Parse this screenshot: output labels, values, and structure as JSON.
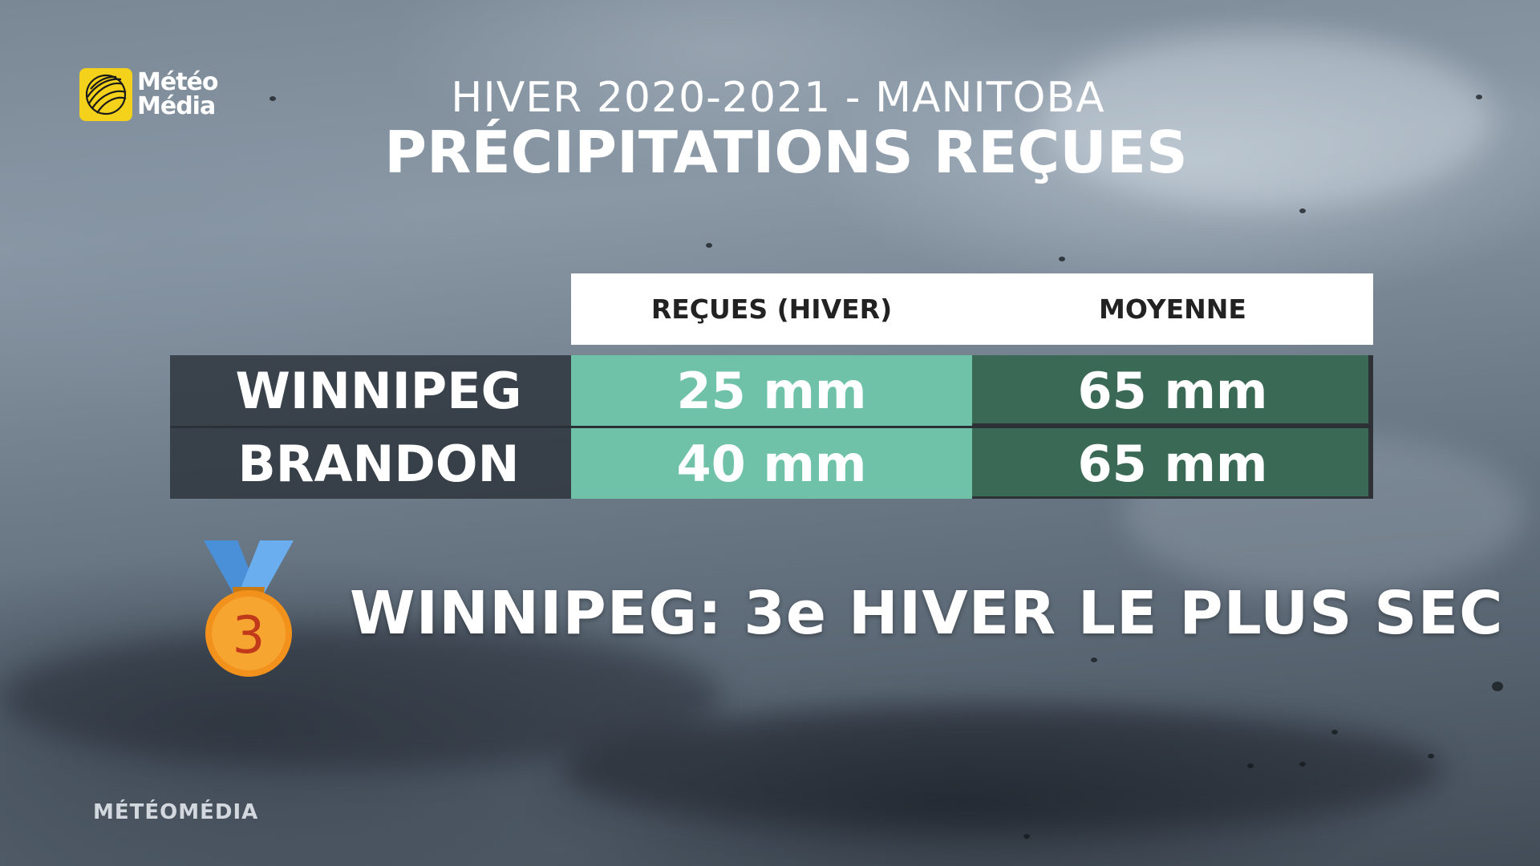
{
  "logo": {
    "line1": "Météo",
    "line2": "Média"
  },
  "header": {
    "subtitle": "HIVER 2020-2021 - MANITOBA",
    "title": "PRÉCIPITATIONS REÇUES"
  },
  "table": {
    "columns": [
      "REÇUES (HIVER)",
      "MOYENNE"
    ],
    "rows": [
      {
        "city": "WINNIPEG",
        "received": "25 mm",
        "average": "65 mm"
      },
      {
        "city": "BRANDON",
        "received": "40 mm",
        "average": "65 mm"
      }
    ]
  },
  "medal": {
    "icon": "third-place-medal-icon",
    "number": "3"
  },
  "headline": "WINNIPEG: 3e HIVER LE PLUS SEC",
  "watermark": "MÉTÉOMÉDIA",
  "colors": {
    "received_cell": "#6fc2a8",
    "average_cell": "#3a6a56",
    "logo_yellow": "#f4d11a",
    "medal_orange": "#f2911b",
    "ribbon_blue": "#4a90d9"
  }
}
